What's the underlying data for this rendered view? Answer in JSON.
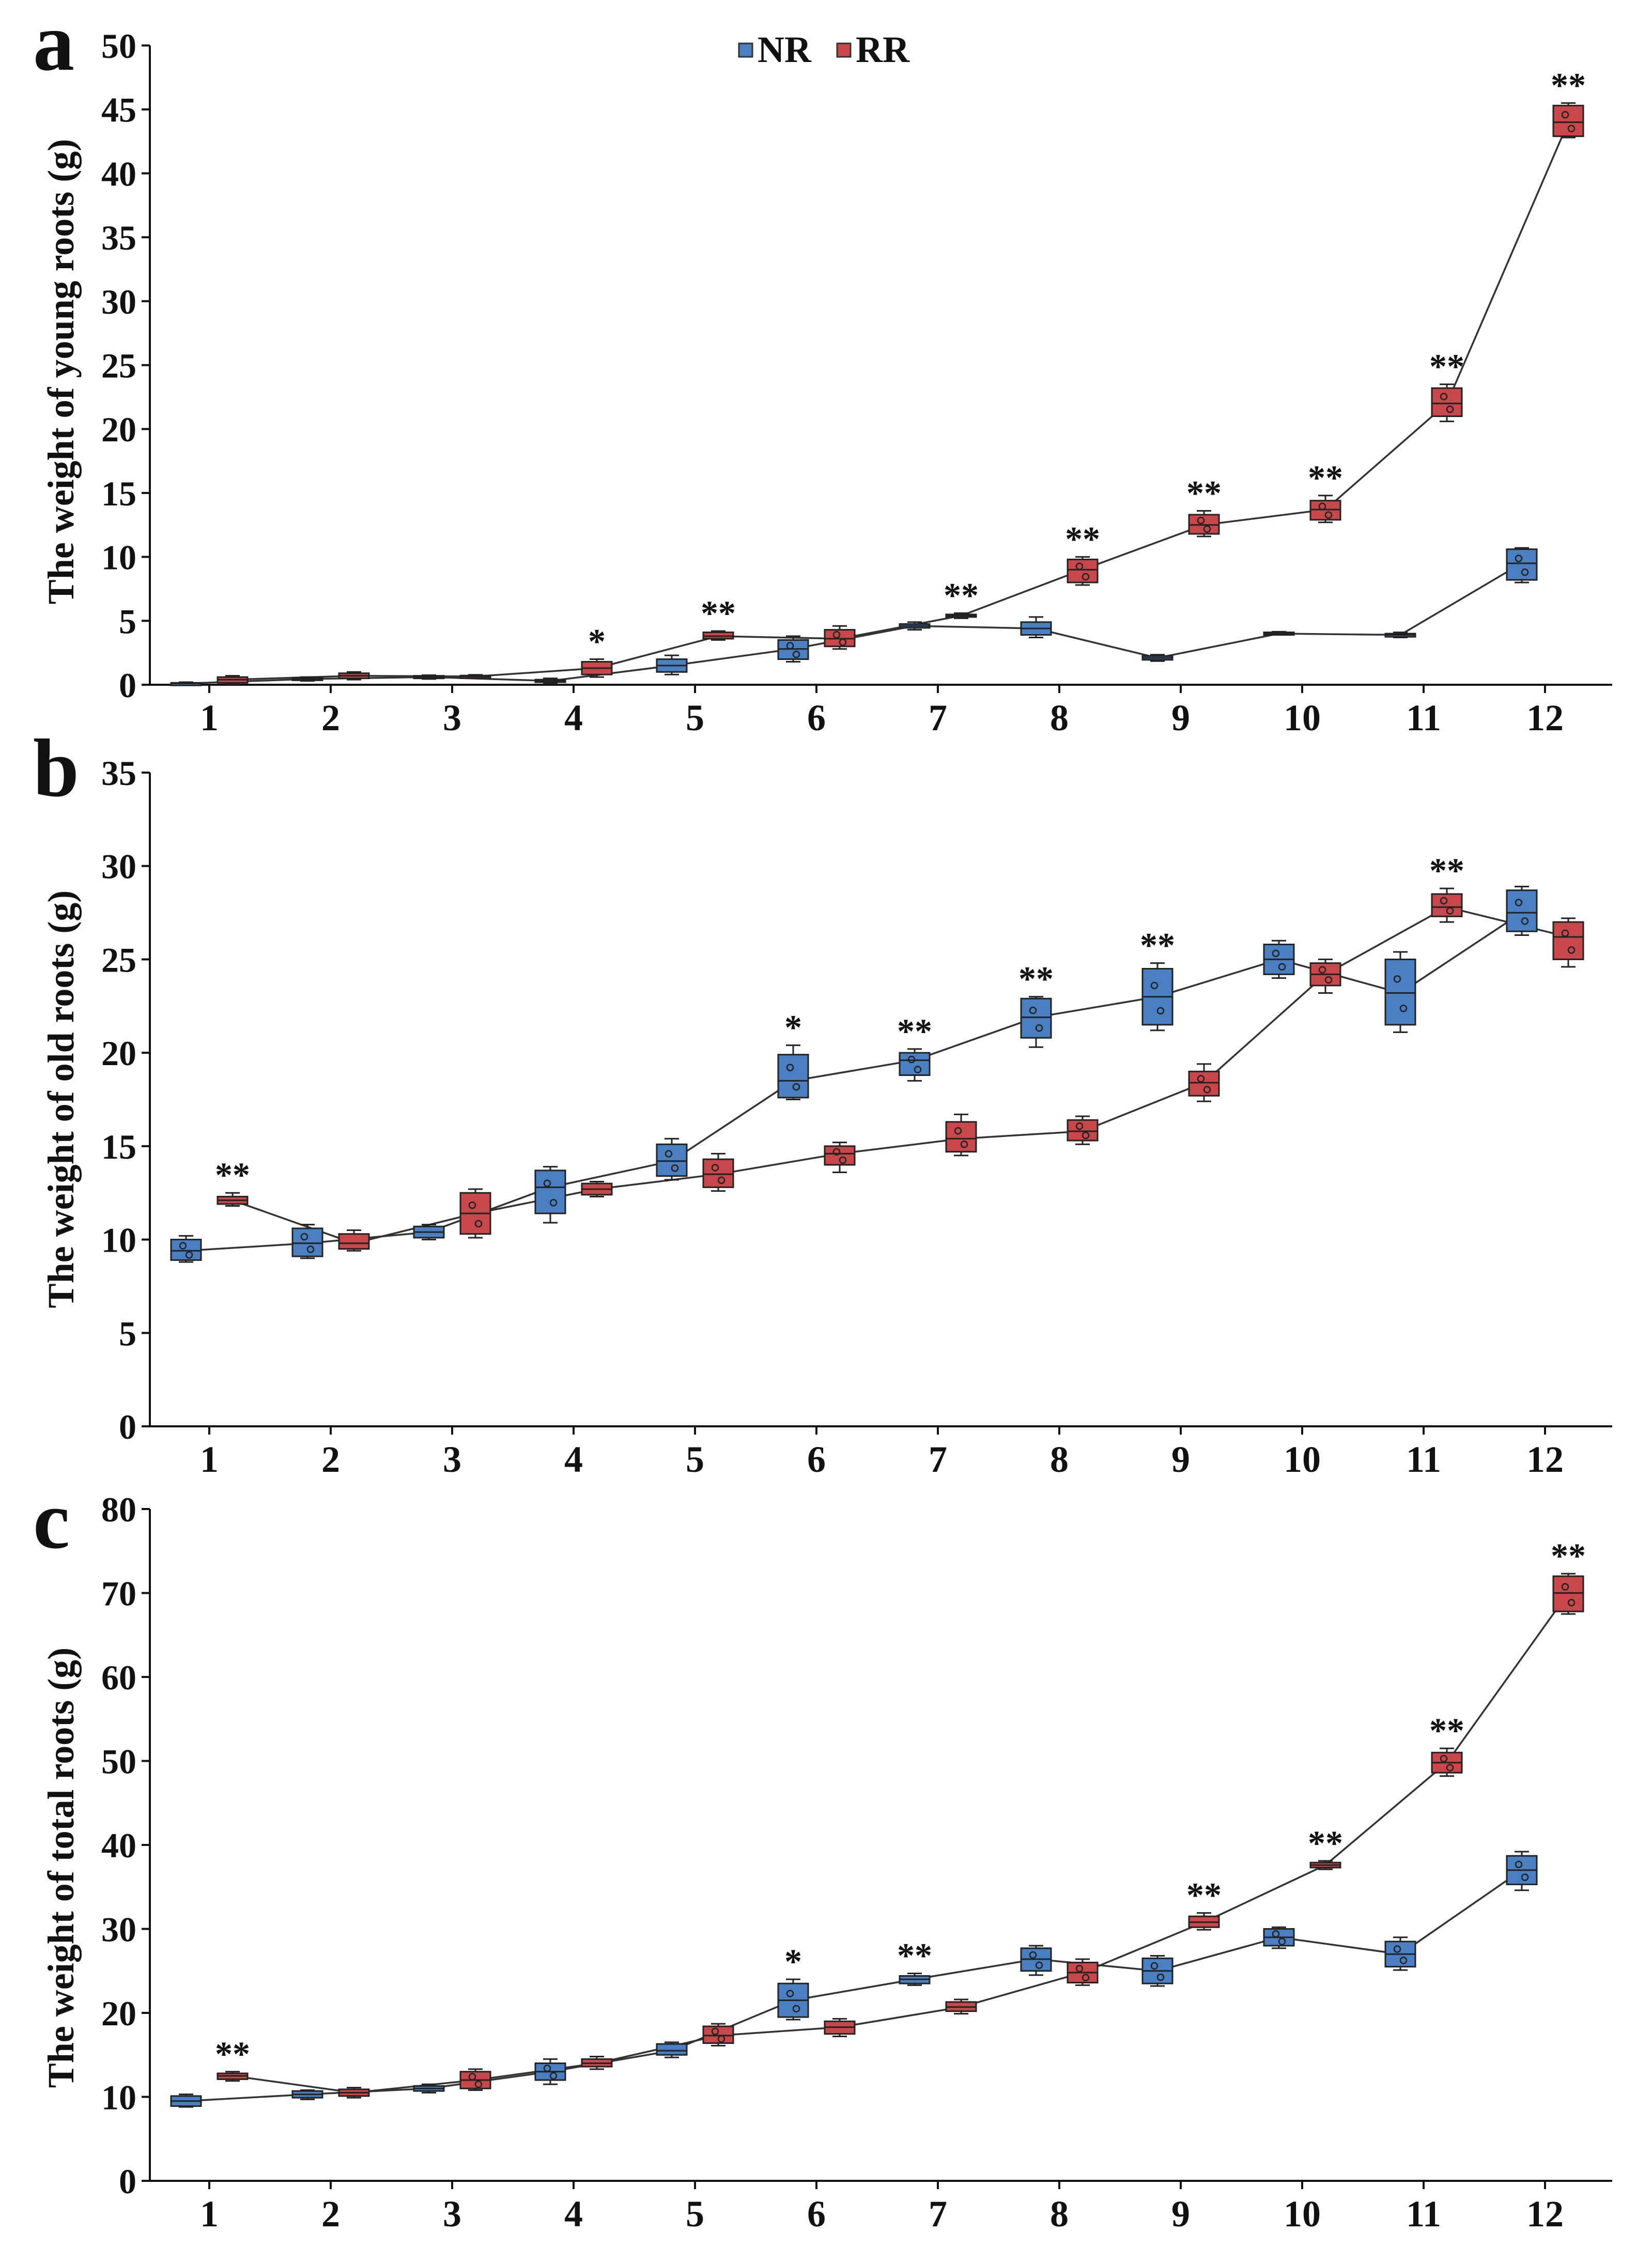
{
  "legend": {
    "items": [
      {
        "label": "NR",
        "color": "#4a7fc1"
      },
      {
        "label": "RR",
        "color": "#c8474a"
      }
    ]
  },
  "chart_data": [
    {
      "type": "box-line",
      "panel_label": "a",
      "ylabel": "The weight of young roots (g)",
      "ylim": [
        0,
        50
      ],
      "yticks": [
        0,
        5,
        10,
        15,
        20,
        25,
        30,
        35,
        40,
        45,
        50
      ],
      "categories": [
        "1",
        "2",
        "3",
        "4",
        "5",
        "6",
        "7",
        "8",
        "9",
        "10",
        "11",
        "12"
      ],
      "series": [
        {
          "name": "NR",
          "boxes": [
            {
              "med": 0.1,
              "q1": 0.05,
              "q3": 0.15,
              "lo": 0,
              "hi": 0.2
            },
            {
              "med": 0.45,
              "q1": 0.35,
              "q3": 0.55,
              "lo": 0.3,
              "hi": 0.6
            },
            {
              "med": 0.6,
              "q1": 0.5,
              "q3": 0.7,
              "lo": 0.45,
              "hi": 0.75
            },
            {
              "med": 0.3,
              "q1": 0.2,
              "q3": 0.4,
              "lo": 0.1,
              "hi": 0.5
            },
            {
              "med": 1.5,
              "q1": 1.0,
              "q3": 2.0,
              "lo": 0.8,
              "hi": 2.3
            },
            {
              "med": 2.8,
              "q1": 2.0,
              "q3": 3.5,
              "lo": 1.8,
              "hi": 3.8
            },
            {
              "med": 4.6,
              "q1": 4.45,
              "q3": 4.75,
              "lo": 4.3,
              "hi": 4.9
            },
            {
              "med": 4.4,
              "q1": 3.9,
              "q3": 4.9,
              "lo": 3.7,
              "hi": 5.3
            },
            {
              "med": 2.1,
              "q1": 1.95,
              "q3": 2.25,
              "lo": 1.85,
              "hi": 2.35
            },
            {
              "med": 4.0,
              "q1": 3.95,
              "q3": 4.1,
              "lo": 3.9,
              "hi": 4.15
            },
            {
              "med": 3.9,
              "q1": 3.75,
              "q3": 4.0,
              "lo": 3.7,
              "hi": 4.1
            },
            {
              "med": 9.5,
              "q1": 8.2,
              "q3": 10.6,
              "lo": 8.0,
              "hi": 10.7
            }
          ]
        },
        {
          "name": "RR",
          "boxes": [
            {
              "med": 0.4,
              "q1": 0.15,
              "q3": 0.6,
              "lo": 0.05,
              "hi": 0.7
            },
            {
              "med": 0.7,
              "q1": 0.5,
              "q3": 0.9,
              "lo": 0.4,
              "hi": 1.0
            },
            {
              "med": 0.65,
              "q1": 0.6,
              "q3": 0.72,
              "lo": 0.55,
              "hi": 0.78
            },
            {
              "med": 1.3,
              "q1": 0.8,
              "q3": 1.8,
              "lo": 0.6,
              "hi": 2.0
            },
            {
              "med": 3.8,
              "q1": 3.6,
              "q3": 4.1,
              "lo": 3.5,
              "hi": 4.2
            },
            {
              "med": 3.6,
              "q1": 3.0,
              "q3": 4.3,
              "lo": 2.8,
              "hi": 4.6
            },
            {
              "med": 5.4,
              "q1": 5.3,
              "q3": 5.5,
              "lo": 5.2,
              "hi": 5.6
            },
            {
              "med": 9.0,
              "q1": 8.0,
              "q3": 9.8,
              "lo": 7.8,
              "hi": 10.0
            },
            {
              "med": 12.5,
              "q1": 11.8,
              "q3": 13.3,
              "lo": 11.6,
              "hi": 13.6
            },
            {
              "med": 13.7,
              "q1": 12.9,
              "q3": 14.4,
              "lo": 12.7,
              "hi": 14.8
            },
            {
              "med": 22.0,
              "q1": 21.0,
              "q3": 23.2,
              "lo": 20.6,
              "hi": 23.5
            },
            {
              "med": 44.0,
              "q1": 42.9,
              "q3": 45.3,
              "lo": 42.8,
              "hi": 45.5
            }
          ]
        }
      ],
      "significance": [
        {
          "category": "4",
          "label": "*"
        },
        {
          "category": "5",
          "label": "**"
        },
        {
          "category": "7",
          "label": "**"
        },
        {
          "category": "8",
          "label": "**"
        },
        {
          "category": "9",
          "label": "**"
        },
        {
          "category": "10",
          "label": "**"
        },
        {
          "category": "11",
          "label": "**"
        },
        {
          "category": "12",
          "label": "**"
        }
      ]
    },
    {
      "type": "box-line",
      "panel_label": "b",
      "ylabel": "The weight of old roots (g)",
      "ylim": [
        0,
        35
      ],
      "yticks": [
        0,
        5,
        10,
        15,
        20,
        25,
        30,
        35
      ],
      "categories": [
        "1",
        "2",
        "3",
        "4",
        "5",
        "6",
        "7",
        "8",
        "9",
        "10",
        "11",
        "12"
      ],
      "series": [
        {
          "name": "NR",
          "boxes": [
            {
              "med": 9.4,
              "q1": 8.9,
              "q3": 10.0,
              "lo": 8.8,
              "hi": 10.2
            },
            {
              "med": 9.8,
              "q1": 9.1,
              "q3": 10.6,
              "lo": 9.0,
              "hi": 10.8
            },
            {
              "med": 10.4,
              "q1": 10.1,
              "q3": 10.7,
              "lo": 10.0,
              "hi": 10.8
            },
            {
              "med": 12.8,
              "q1": 11.4,
              "q3": 13.7,
              "lo": 10.9,
              "hi": 13.9
            },
            {
              "med": 14.2,
              "q1": 13.4,
              "q3": 15.1,
              "lo": 13.2,
              "hi": 15.4
            },
            {
              "med": 18.5,
              "q1": 17.6,
              "q3": 19.9,
              "lo": 17.5,
              "hi": 20.4
            },
            {
              "med": 19.6,
              "q1": 18.8,
              "q3": 20.0,
              "lo": 18.5,
              "hi": 20.2
            },
            {
              "med": 21.9,
              "q1": 20.8,
              "q3": 22.9,
              "lo": 20.3,
              "hi": 23.0
            },
            {
              "med": 23.0,
              "q1": 21.5,
              "q3": 24.5,
              "lo": 21.2,
              "hi": 24.8
            },
            {
              "med": 25.0,
              "q1": 24.2,
              "q3": 25.8,
              "lo": 24.0,
              "hi": 26.0
            },
            {
              "med": 23.2,
              "q1": 21.5,
              "q3": 25.0,
              "lo": 21.1,
              "hi": 25.4
            },
            {
              "med": 27.5,
              "q1": 26.5,
              "q3": 28.7,
              "lo": 26.3,
              "hi": 28.9
            }
          ]
        },
        {
          "name": "RR",
          "boxes": [
            {
              "med": 12.1,
              "q1": 11.9,
              "q3": 12.3,
              "lo": 11.8,
              "hi": 12.5
            },
            {
              "med": 9.8,
              "q1": 9.5,
              "q3": 10.3,
              "lo": 9.4,
              "hi": 10.5
            },
            {
              "med": 11.4,
              "q1": 10.3,
              "q3": 12.5,
              "lo": 10.1,
              "hi": 12.7
            },
            {
              "med": 12.7,
              "q1": 12.4,
              "q3": 13.0,
              "lo": 12.3,
              "hi": 13.1
            },
            {
              "med": 13.5,
              "q1": 12.8,
              "q3": 14.3,
              "lo": 12.6,
              "hi": 14.6
            },
            {
              "med": 14.6,
              "q1": 14.0,
              "q3": 15.0,
              "lo": 13.6,
              "hi": 15.2
            },
            {
              "med": 15.4,
              "q1": 14.7,
              "q3": 16.3,
              "lo": 14.5,
              "hi": 16.7
            },
            {
              "med": 15.8,
              "q1": 15.3,
              "q3": 16.4,
              "lo": 15.1,
              "hi": 16.6
            },
            {
              "med": 18.4,
              "q1": 17.7,
              "q3": 19.0,
              "lo": 17.4,
              "hi": 19.4
            },
            {
              "med": 24.2,
              "q1": 23.6,
              "q3": 24.8,
              "lo": 23.2,
              "hi": 25.0
            },
            {
              "med": 27.8,
              "q1": 27.3,
              "q3": 28.5,
              "lo": 27.0,
              "hi": 28.8
            },
            {
              "med": 26.2,
              "q1": 25.0,
              "q3": 27.0,
              "lo": 24.6,
              "hi": 27.2
            }
          ]
        }
      ],
      "significance": [
        {
          "category": "1",
          "label": "**"
        },
        {
          "category": "6",
          "label": "*"
        },
        {
          "category": "7",
          "label": "**"
        },
        {
          "category": "8",
          "label": "**"
        },
        {
          "category": "9",
          "label": "**"
        },
        {
          "category": "11",
          "label": "**"
        }
      ]
    },
    {
      "type": "box-line",
      "panel_label": "c",
      "ylabel": "The weight of total roots (g)",
      "ylim": [
        0,
        80
      ],
      "yticks": [
        0,
        10,
        20,
        30,
        40,
        50,
        60,
        70,
        80
      ],
      "categories": [
        "1",
        "2",
        "3",
        "4",
        "5",
        "6",
        "7",
        "8",
        "9",
        "10",
        "11",
        "12"
      ],
      "series": [
        {
          "name": "NR",
          "boxes": [
            {
              "med": 9.5,
              "q1": 8.9,
              "q3": 10.1,
              "lo": 8.8,
              "hi": 10.3
            },
            {
              "med": 10.3,
              "q1": 9.9,
              "q3": 10.7,
              "lo": 9.7,
              "hi": 10.8
            },
            {
              "med": 11.0,
              "q1": 10.7,
              "q3": 11.3,
              "lo": 10.5,
              "hi": 11.5
            },
            {
              "med": 13.0,
              "q1": 12.0,
              "q3": 14.0,
              "lo": 11.5,
              "hi": 14.5
            },
            {
              "med": 15.5,
              "q1": 15.0,
              "q3": 16.3,
              "lo": 14.7,
              "hi": 16.5
            },
            {
              "med": 21.5,
              "q1": 19.5,
              "q3": 23.5,
              "lo": 19.2,
              "hi": 24.0
            },
            {
              "med": 24.0,
              "q1": 23.5,
              "q3": 24.4,
              "lo": 23.3,
              "hi": 24.7
            },
            {
              "med": 26.4,
              "q1": 25.0,
              "q3": 27.7,
              "lo": 24.5,
              "hi": 28.0
            },
            {
              "med": 25.0,
              "q1": 23.5,
              "q3": 26.5,
              "lo": 23.2,
              "hi": 26.8
            },
            {
              "med": 29.0,
              "q1": 28.0,
              "q3": 30.0,
              "lo": 27.7,
              "hi": 30.2
            },
            {
              "med": 27.0,
              "q1": 25.5,
              "q3": 28.5,
              "lo": 25.1,
              "hi": 29.0
            },
            {
              "med": 37.0,
              "q1": 35.3,
              "q3": 38.7,
              "lo": 34.6,
              "hi": 39.2
            }
          ]
        },
        {
          "name": "RR",
          "boxes": [
            {
              "med": 12.5,
              "q1": 12.1,
              "q3": 12.8,
              "lo": 11.9,
              "hi": 13.0
            },
            {
              "med": 10.5,
              "q1": 10.1,
              "q3": 10.9,
              "lo": 9.9,
              "hi": 11.1
            },
            {
              "med": 12.0,
              "q1": 11.0,
              "q3": 13.0,
              "lo": 10.8,
              "hi": 13.3
            },
            {
              "med": 14.0,
              "q1": 13.6,
              "q3": 14.5,
              "lo": 13.3,
              "hi": 14.8
            },
            {
              "med": 17.3,
              "q1": 16.4,
              "q3": 18.4,
              "lo": 16.1,
              "hi": 18.7
            },
            {
              "med": 18.3,
              "q1": 17.5,
              "q3": 19.0,
              "lo": 17.2,
              "hi": 19.3
            },
            {
              "med": 20.7,
              "q1": 20.2,
              "q3": 21.3,
              "lo": 19.9,
              "hi": 21.6
            },
            {
              "med": 24.8,
              "q1": 23.6,
              "q3": 26.0,
              "lo": 23.3,
              "hi": 26.4
            },
            {
              "med": 30.8,
              "q1": 30.2,
              "q3": 31.5,
              "lo": 29.9,
              "hi": 31.9
            },
            {
              "med": 37.6,
              "q1": 37.3,
              "q3": 37.9,
              "lo": 37.1,
              "hi": 38.1
            },
            {
              "med": 49.8,
              "q1": 48.6,
              "q3": 51.0,
              "lo": 48.2,
              "hi": 51.5
            },
            {
              "med": 70.0,
              "q1": 67.8,
              "q3": 72.0,
              "lo": 67.5,
              "hi": 72.3
            }
          ]
        }
      ],
      "significance": [
        {
          "category": "1",
          "label": "**"
        },
        {
          "category": "6",
          "label": "*"
        },
        {
          "category": "7",
          "label": "**"
        },
        {
          "category": "9",
          "label": "**"
        },
        {
          "category": "10",
          "label": "**"
        },
        {
          "category": "11",
          "label": "**"
        },
        {
          "category": "12",
          "label": "**"
        }
      ]
    }
  ]
}
